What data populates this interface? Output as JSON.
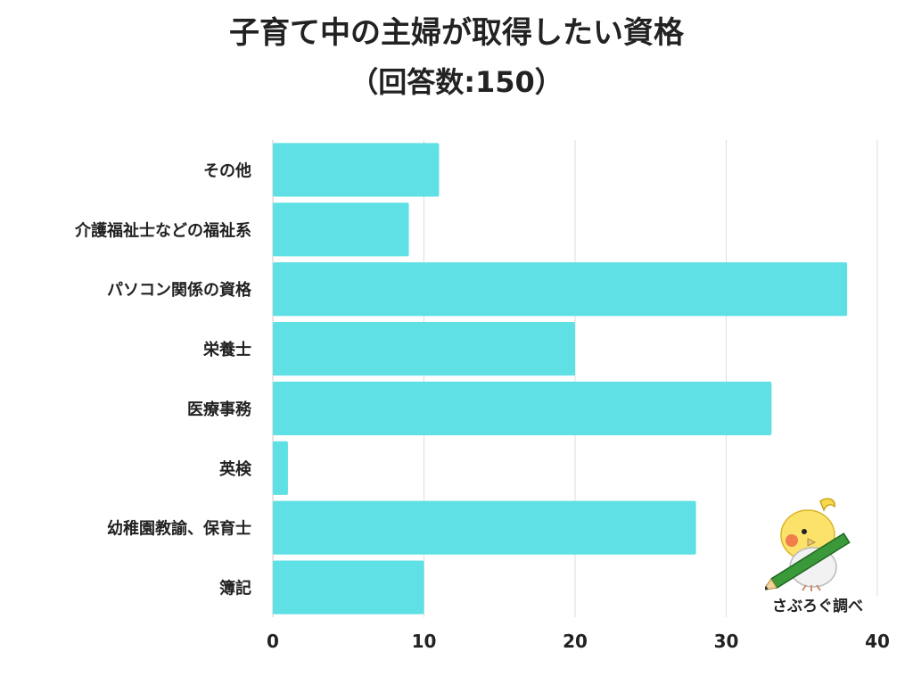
{
  "header": {
    "title_line1": "子育て中の主婦が取得したい資格",
    "title_line2": "（回答数:150）"
  },
  "credit": "さぶろぐ調べ",
  "colors": {
    "bar": "#5ee0e4",
    "text": "#222222",
    "grid": "#dddddd"
  },
  "chart_data": {
    "type": "bar",
    "orientation": "horizontal",
    "title": "子育て中の主婦が取得したい資格",
    "subtitle": "（回答数:150）",
    "categories": [
      "その他",
      "介護福祉士などの福祉系",
      "パソコン関係の資格",
      "栄養士",
      "医療事務",
      "英検",
      "幼稚園教諭、保育士",
      "簿記"
    ],
    "values": [
      11,
      9,
      38,
      20,
      33,
      1,
      28,
      10
    ],
    "xlim": [
      0,
      40
    ],
    "xticks": [
      0,
      10,
      20,
      30,
      40
    ],
    "xlabel": "",
    "ylabel": "",
    "grid": true,
    "legend": "none"
  }
}
